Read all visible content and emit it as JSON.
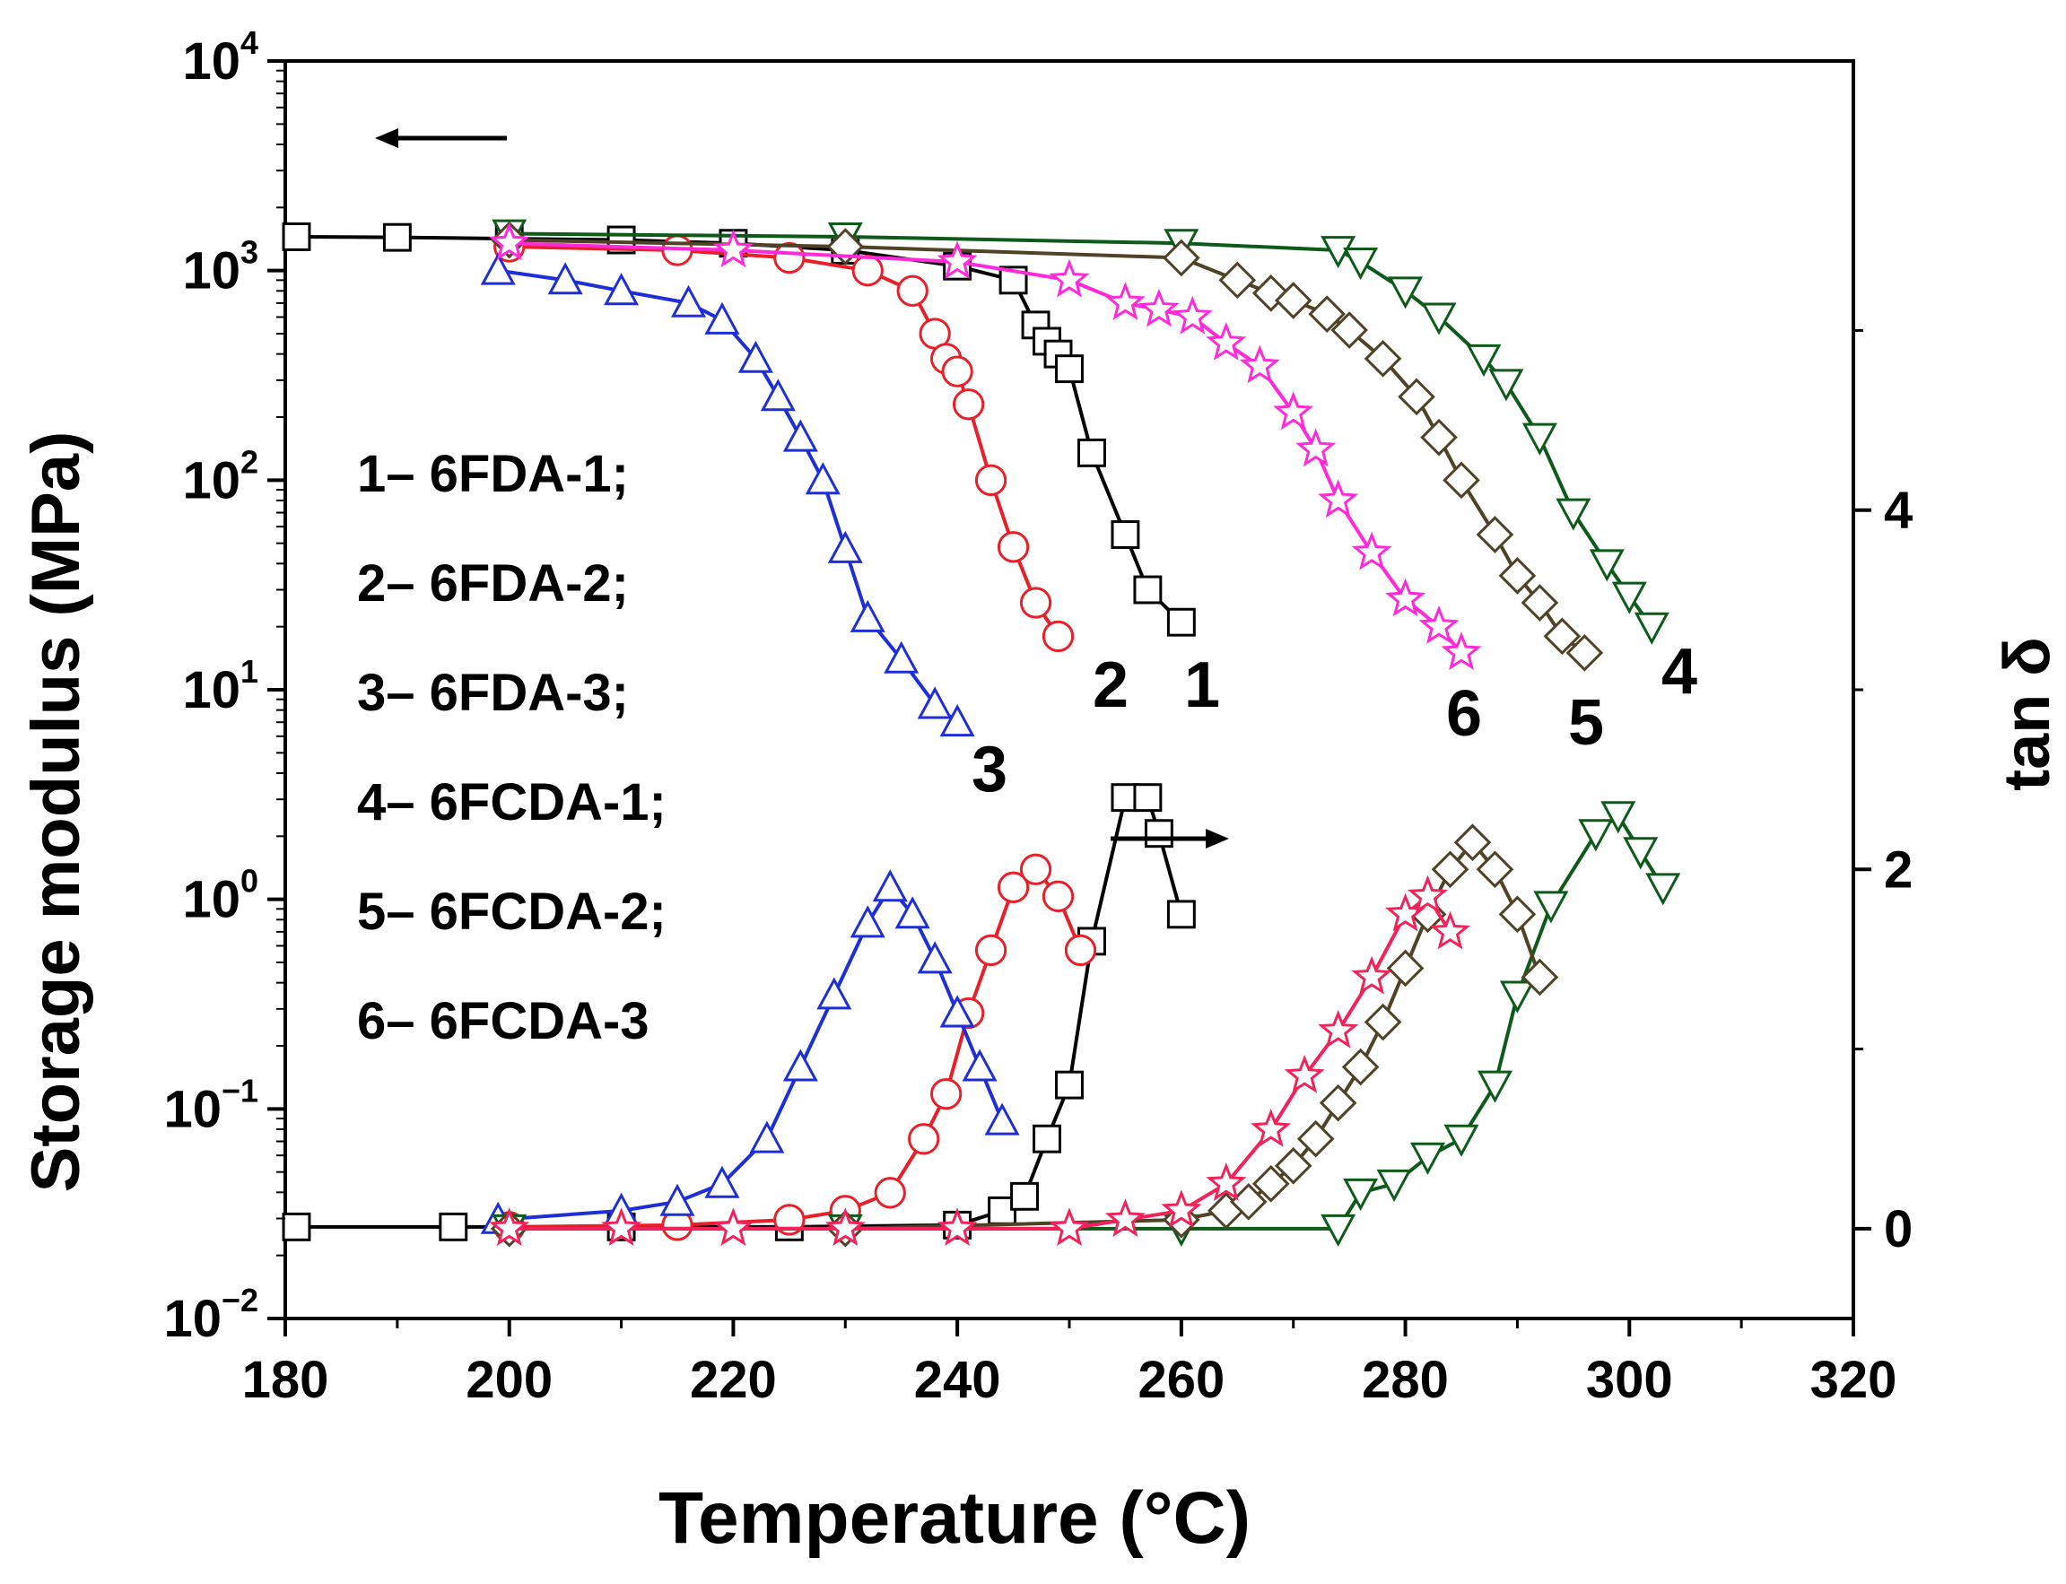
{
  "chart_data": {
    "type": "line",
    "xlabel": "Temperature (°C)",
    "ylabel_left": "Storage modulus (MPa)",
    "ylabel_right": "tan δ",
    "xlim": [
      180,
      320
    ],
    "xticks": [
      "180",
      "200",
      "220",
      "240",
      "260",
      "280",
      "300",
      "320"
    ],
    "ylim_left": [
      0.01,
      10000
    ],
    "yscale_left": "log",
    "yticks_left": [
      {
        "base": "10",
        "exp": "4",
        "value": 10000
      },
      {
        "base": "10",
        "exp": "3",
        "value": 1000
      },
      {
        "base": "10",
        "exp": "2",
        "value": 100
      },
      {
        "base": "10",
        "exp": "1",
        "value": 10
      },
      {
        "base": "10",
        "exp": "0",
        "value": 1
      },
      {
        "base": "10",
        "exp": "−1",
        "value": 0.1
      },
      {
        "base": "10",
        "exp": "−2",
        "value": 0.01
      }
    ],
    "ylim_right": [
      -0.5,
      6.5
    ],
    "yticks_right": [
      "0",
      "2",
      "4"
    ],
    "arrows": [
      "storage-modulus-left-arrow",
      "tan-delta-right-arrow"
    ],
    "legend": [
      "1– 6FDA-1;",
      "2– 6FDA-2;",
      "3– 6FDA-3;",
      "4– 6FCDA-1;",
      "5– 6FCDA-2;",
      "6– 6FCDA-3"
    ],
    "series": [
      {
        "name": "6FDA-1",
        "label": "1",
        "color": "#000000",
        "marker": "square",
        "modulus": [
          [
            181,
            1450
          ],
          [
            190,
            1440
          ],
          [
            200,
            1420
          ],
          [
            210,
            1400
          ],
          [
            220,
            1350
          ],
          [
            230,
            1250
          ],
          [
            240,
            1050
          ],
          [
            245,
            900
          ],
          [
            247,
            550
          ],
          [
            248,
            460
          ],
          [
            249,
            400
          ],
          [
            250,
            340
          ],
          [
            252,
            135
          ],
          [
            255,
            55
          ],
          [
            257,
            30
          ],
          [
            260,
            21
          ]
        ],
        "tan_delta": [
          [
            181,
            0.01
          ],
          [
            195,
            0.01
          ],
          [
            210,
            0.01
          ],
          [
            225,
            0.01
          ],
          [
            240,
            0.02
          ],
          [
            244,
            0.1
          ],
          [
            246,
            0.18
          ],
          [
            248,
            0.5
          ],
          [
            250,
            0.8
          ],
          [
            252,
            1.6
          ],
          [
            255,
            2.4
          ],
          [
            257,
            2.4
          ],
          [
            258,
            2.2
          ],
          [
            260,
            1.75
          ]
        ]
      },
      {
        "name": "6FDA-2",
        "label": "2",
        "color": "#e8202a",
        "marker": "circle",
        "modulus": [
          [
            200,
            1300
          ],
          [
            215,
            1250
          ],
          [
            225,
            1150
          ],
          [
            232,
            1000
          ],
          [
            236,
            800
          ],
          [
            238,
            500
          ],
          [
            239,
            380
          ],
          [
            240,
            330
          ],
          [
            241,
            230
          ],
          [
            243,
            100
          ],
          [
            245,
            48
          ],
          [
            247,
            26
          ],
          [
            249,
            18
          ]
        ],
        "tan_delta": [
          [
            200,
            0.01
          ],
          [
            215,
            0.02
          ],
          [
            225,
            0.05
          ],
          [
            230,
            0.1
          ],
          [
            234,
            0.2
          ],
          [
            237,
            0.5
          ],
          [
            239,
            0.75
          ],
          [
            241,
            1.2
          ],
          [
            243,
            1.55
          ],
          [
            245,
            1.9
          ],
          [
            247,
            2.0
          ],
          [
            249,
            1.85
          ],
          [
            251,
            1.55
          ]
        ]
      },
      {
        "name": "6FDA-3",
        "label": "3",
        "color": "#1f2fd6",
        "marker": "triangle",
        "modulus": [
          [
            199,
            1000
          ],
          [
            205,
            900
          ],
          [
            210,
            800
          ],
          [
            216,
            700
          ],
          [
            219,
            580
          ],
          [
            222,
            380
          ],
          [
            224,
            250
          ],
          [
            226,
            160
          ],
          [
            228,
            100
          ],
          [
            230,
            47
          ],
          [
            232,
            22
          ],
          [
            235,
            14
          ],
          [
            238,
            8.5
          ],
          [
            240,
            7
          ]
        ],
        "tan_delta": [
          [
            199,
            0.05
          ],
          [
            210,
            0.1
          ],
          [
            215,
            0.15
          ],
          [
            219,
            0.25
          ],
          [
            223,
            0.5
          ],
          [
            226,
            0.9
          ],
          [
            229,
            1.3
          ],
          [
            232,
            1.7
          ],
          [
            234,
            1.9
          ],
          [
            236,
            1.75
          ],
          [
            238,
            1.5
          ],
          [
            240,
            1.2
          ],
          [
            242,
            0.9
          ],
          [
            244,
            0.6
          ]
        ]
      },
      {
        "name": "6FCDA-1",
        "label": "4",
        "color": "#0d5a1a",
        "marker": "triangle-down",
        "modulus": [
          [
            200,
            1500
          ],
          [
            230,
            1450
          ],
          [
            260,
            1350
          ],
          [
            274,
            1250
          ],
          [
            276,
            1100
          ],
          [
            280,
            800
          ],
          [
            283,
            600
          ],
          [
            287,
            380
          ],
          [
            289,
            290
          ],
          [
            292,
            160
          ],
          [
            295,
            70
          ],
          [
            298,
            40
          ],
          [
            300,
            28
          ],
          [
            302,
            20
          ]
        ],
        "tan_delta": [
          [
            200,
            0.0
          ],
          [
            230,
            0.0
          ],
          [
            260,
            0.0
          ],
          [
            274,
            0.0
          ],
          [
            276,
            0.2
          ],
          [
            279,
            0.25
          ],
          [
            282,
            0.4
          ],
          [
            285,
            0.5
          ],
          [
            288,
            0.8
          ],
          [
            290,
            1.3
          ],
          [
            293,
            1.8
          ],
          [
            297,
            2.2
          ],
          [
            299,
            2.3
          ],
          [
            301,
            2.1
          ],
          [
            303,
            1.9
          ]
        ]
      },
      {
        "name": "6FCDA-2",
        "label": "5",
        "color": "#4e4326",
        "marker": "diamond",
        "modulus": [
          [
            200,
            1400
          ],
          [
            230,
            1300
          ],
          [
            260,
            1150
          ],
          [
            265,
            900
          ],
          [
            268,
            780
          ],
          [
            270,
            720
          ],
          [
            273,
            620
          ],
          [
            275,
            520
          ],
          [
            278,
            380
          ],
          [
            281,
            250
          ],
          [
            283,
            160
          ],
          [
            285,
            100
          ],
          [
            288,
            55
          ],
          [
            290,
            35
          ],
          [
            292,
            26
          ],
          [
            294,
            18
          ],
          [
            296,
            15
          ]
        ],
        "tan_delta": [
          [
            200,
            0.0
          ],
          [
            230,
            0.0
          ],
          [
            260,
            0.05
          ],
          [
            264,
            0.1
          ],
          [
            266,
            0.15
          ],
          [
            268,
            0.25
          ],
          [
            270,
            0.35
          ],
          [
            272,
            0.5
          ],
          [
            274,
            0.7
          ],
          [
            276,
            0.9
          ],
          [
            278,
            1.15
          ],
          [
            280,
            1.45
          ],
          [
            282,
            1.75
          ],
          [
            284,
            2.0
          ],
          [
            286,
            2.15
          ],
          [
            288,
            2.0
          ],
          [
            290,
            1.75
          ],
          [
            292,
            1.4
          ]
        ]
      },
      {
        "name": "6FCDA-3",
        "label": "6",
        "color": "#ff2ad8",
        "marker": "star",
        "modulus": [
          [
            200,
            1350
          ],
          [
            220,
            1250
          ],
          [
            240,
            1100
          ],
          [
            250,
            900
          ],
          [
            255,
            700
          ],
          [
            258,
            650
          ],
          [
            261,
            600
          ],
          [
            264,
            450
          ],
          [
            267,
            350
          ],
          [
            270,
            210
          ],
          [
            272,
            140
          ],
          [
            274,
            80
          ],
          [
            277,
            45
          ],
          [
            280,
            27
          ],
          [
            283,
            20
          ],
          [
            285,
            15
          ]
        ],
        "tan_delta_color": "#f0245a",
        "tan_delta": [
          [
            200,
            0.0
          ],
          [
            210,
            0.0
          ],
          [
            220,
            0.0
          ],
          [
            230,
            0.0
          ],
          [
            240,
            0.0
          ],
          [
            250,
            0.0
          ],
          [
            255,
            0.05
          ],
          [
            260,
            0.1
          ],
          [
            264,
            0.25
          ],
          [
            268,
            0.55
          ],
          [
            271,
            0.85
          ],
          [
            274,
            1.1
          ],
          [
            277,
            1.4
          ],
          [
            280,
            1.75
          ],
          [
            282,
            1.85
          ],
          [
            284,
            1.65
          ]
        ]
      }
    ]
  }
}
